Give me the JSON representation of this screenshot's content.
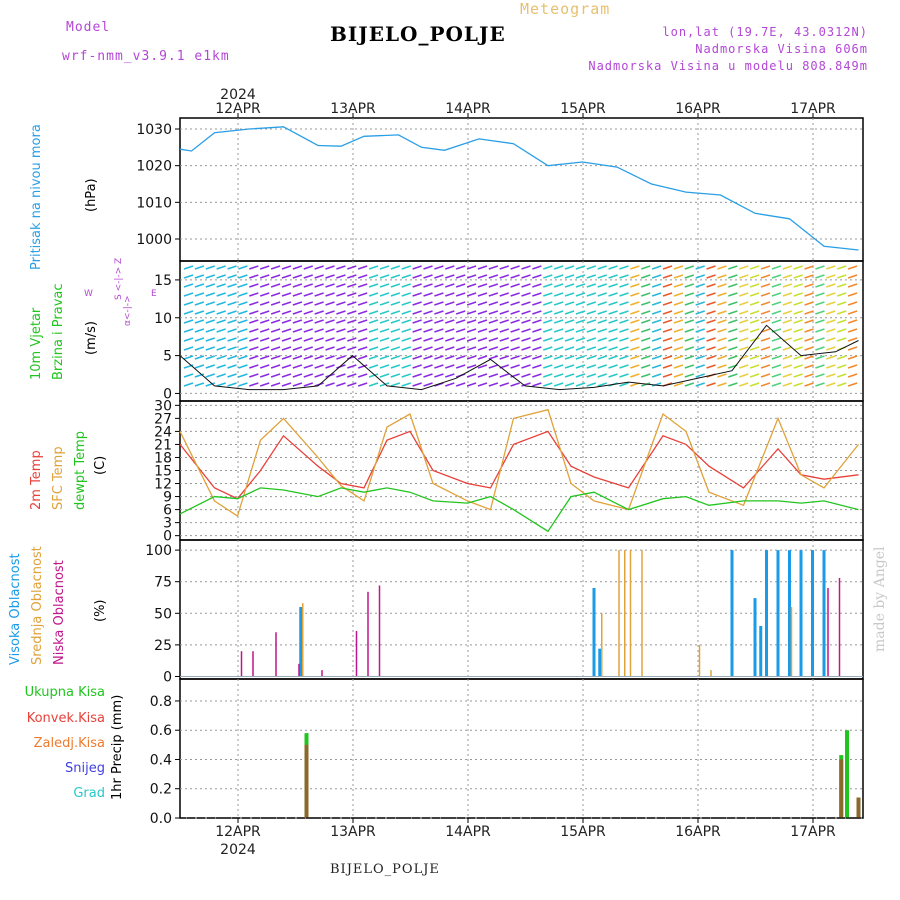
{
  "header": {
    "model_label": "Model",
    "model_name": "wrf-nmm_v3.9.1 e1km",
    "app_title": "Meteogram",
    "station": "BIJELO_POLJE",
    "lonlat": "lon,lat (19.7E, 43.0312N)",
    "elevation": "Nadmorska Visina 606m",
    "model_elevation": "Nadmorska Visina u modelu 808.849m"
  },
  "time_axis": {
    "year": "2024",
    "days": [
      "12APR",
      "13APR",
      "14APR",
      "15APR",
      "16APR",
      "17APR"
    ]
  },
  "footer": {
    "station": "BIJELO_POLJE",
    "credit": "made by Angel"
  },
  "colors": {
    "pressure": "#2a9fe6",
    "temp2m": "#e8413a",
    "sfc": "#e0a23a",
    "dewpt": "#22c41f",
    "high_cloud": "#1a9be8",
    "mid_cloud": "#e0a23a",
    "low_cloud": "#c0168b",
    "total_precip": "#22c41f",
    "conv_precip": "#e8413a",
    "frz_precip": "#ef7b2d",
    "snow": "#4040e0",
    "hail": "#28c8c8",
    "violet": "#b347d6"
  },
  "panels": {
    "pressure": {
      "label": "Pritisak na nivou mora",
      "unit": "(hPa)",
      "yticks": [
        "1030",
        "1020",
        "1010",
        "1000"
      ]
    },
    "wind": {
      "label1": "10m Vjetar",
      "label2": "Brzina i Pravac",
      "unit": "(m/s)",
      "compass_top": "S <-|-> Z",
      "compass_w": "W",
      "compass_e": "E",
      "compass_bottom": "α<-|->",
      "yticks": [
        "15",
        "10",
        "5",
        "0"
      ]
    },
    "temp": {
      "label1": "2m Temp",
      "label2": "SFC Temp",
      "label3": "dewpt Temp",
      "unit": "(C)",
      "yticks": [
        "30",
        "27",
        "24",
        "21",
        "18",
        "15",
        "12",
        "9",
        "6",
        "3",
        "0"
      ]
    },
    "cloud": {
      "label1": "Visoka Oblacnost",
      "label2": "Srednja Oblacnost",
      "label3": "Niska Oblacnost",
      "unit": "(%)",
      "yticks": [
        "100",
        "75",
        "50",
        "25",
        "0"
      ]
    },
    "precip": {
      "label_total": "Ukupna Kisa",
      "label_conv": "Konvek.Kisa",
      "label_frz": "Zaledj.Kisa",
      "label_snow": "Snijeg",
      "label_hail": "Grad",
      "unit": "1hr Precip (mm)",
      "yticks": [
        "0.8",
        "0.6",
        "0.4",
        "0.2",
        "0.0"
      ]
    }
  },
  "chart_data": [
    {
      "type": "line",
      "xlabel": "",
      "ylabel": "(hPa)",
      "ylim": [
        994,
        1033
      ],
      "grid": true,
      "x": [
        0,
        0.1,
        0.3,
        0.6,
        0.9,
        1.2,
        1.4,
        1.6,
        1.9,
        2.1,
        2.3,
        2.6,
        2.9,
        3.2,
        3.5,
        3.8,
        4.1,
        4.4,
        4.7,
        5.0,
        5.3,
        5.6,
        5.9
      ],
      "series": [
        {
          "name": "Pritisak na nivou mora",
          "values": [
            1024.5,
            1024,
            1029,
            1030,
            1030.6,
            1025.5,
            1025.3,
            1028,
            1028.4,
            1025,
            1024.2,
            1027.3,
            1026,
            1020,
            1021,
            1019.6,
            1015,
            1012.8,
            1012,
            1007,
            1005.5,
            998,
            997
          ]
        }
      ]
    },
    {
      "type": "line",
      "xlabel": "",
      "ylabel": "(m/s)",
      "ylim": [
        -1,
        17.5
      ],
      "grid": true,
      "x": [
        0,
        0.3,
        0.6,
        0.9,
        1.2,
        1.5,
        1.8,
        2.1,
        2.4,
        2.7,
        3.0,
        3.3,
        3.6,
        3.9,
        4.2,
        4.5,
        4.8,
        5.1,
        5.4,
        5.7,
        5.9
      ],
      "series": [
        {
          "name": "10m Vjetar",
          "values": [
            5,
            1,
            0.5,
            0.5,
            1,
            5,
            1,
            0.5,
            2,
            4.5,
            1,
            0.5,
            0.8,
            1.5,
            1,
            2,
            3,
            9,
            5,
            5.5,
            7
          ]
        }
      ]
    },
    {
      "type": "line",
      "xlabel": "",
      "ylabel": "(C)",
      "ylim": [
        0,
        31
      ],
      "grid": true,
      "x": [
        0,
        0.3,
        0.5,
        0.7,
        0.9,
        1.2,
        1.4,
        1.6,
        1.8,
        2.0,
        2.2,
        2.5,
        2.7,
        2.9,
        3.2,
        3.4,
        3.6,
        3.9,
        4.2,
        4.4,
        4.6,
        4.9,
        5.2,
        5.4,
        5.6,
        5.9
      ],
      "series": [
        {
          "name": "2m Temp",
          "values": [
            21,
            11,
            8.5,
            15,
            23,
            16,
            12,
            11,
            22,
            24,
            15,
            12,
            11,
            21,
            24,
            16,
            13.5,
            11,
            23,
            21,
            16,
            11,
            20,
            14,
            13,
            14
          ]
        },
        {
          "name": "SFC Temp",
          "values": [
            24,
            8,
            4.5,
            22,
            27,
            18,
            11.5,
            8,
            25,
            28,
            12,
            8,
            6,
            27,
            29,
            12,
            8,
            6,
            28,
            24,
            10,
            7,
            27,
            14,
            11,
            21
          ]
        },
        {
          "name": "dewpt Temp",
          "values": [
            5,
            9,
            8.5,
            11,
            10.5,
            9,
            11,
            10,
            11,
            10,
            8,
            7.5,
            9,
            6,
            1,
            9,
            10,
            6,
            8.5,
            9,
            7,
            8,
            8,
            7.5,
            8,
            6
          ]
        }
      ]
    },
    {
      "type": "bar",
      "xlabel": "",
      "ylabel": "(%)",
      "ylim": [
        0,
        100
      ],
      "grid": true,
      "x": [
        0.5,
        0.6,
        0.8,
        1.0,
        1.05,
        1.2,
        1.5,
        1.6,
        1.7,
        3.6,
        3.65,
        3.8,
        3.85,
        3.9,
        4.0,
        4.5,
        4.6,
        4.8,
        5.0,
        5.05,
        5.1,
        5.2,
        5.3,
        5.4,
        5.5,
        5.6,
        5.7
      ],
      "series": [
        {
          "name": "Visoka Oblacnost",
          "values": [
            0,
            0,
            0,
            0,
            55,
            0,
            0,
            0,
            0,
            70,
            22,
            0,
            0,
            0,
            0,
            0,
            0,
            100,
            62,
            40,
            100,
            100,
            100,
            100,
            100,
            100,
            0
          ]
        },
        {
          "name": "Srednja Oblacnost",
          "values": [
            0,
            0,
            0,
            0,
            58,
            0,
            0,
            0,
            0,
            0,
            50,
            100,
            100,
            100,
            100,
            25,
            5,
            0,
            0,
            0,
            0,
            0,
            55,
            0,
            0,
            0,
            0
          ]
        },
        {
          "name": "Niska Oblacnost",
          "values": [
            20,
            20,
            35,
            10,
            0,
            5,
            36,
            67,
            72,
            0,
            0,
            0,
            0,
            0,
            0,
            0,
            0,
            0,
            0,
            0,
            0,
            0,
            0,
            0,
            0,
            70,
            78
          ]
        }
      ]
    },
    {
      "type": "bar",
      "xlabel": "",
      "ylabel": "1hr Precip (mm)",
      "ylim": [
        0,
        0.9
      ],
      "grid": true,
      "x": [
        1.1,
        5.75,
        5.8,
        5.9
      ],
      "series": [
        {
          "name": "Ukupna Kisa",
          "values": [
            0.58,
            0.43,
            0.6,
            0.14
          ]
        },
        {
          "name": "Konvek.Kisa",
          "values": [
            0.5,
            0.4,
            0.0,
            0.14
          ]
        }
      ]
    }
  ]
}
